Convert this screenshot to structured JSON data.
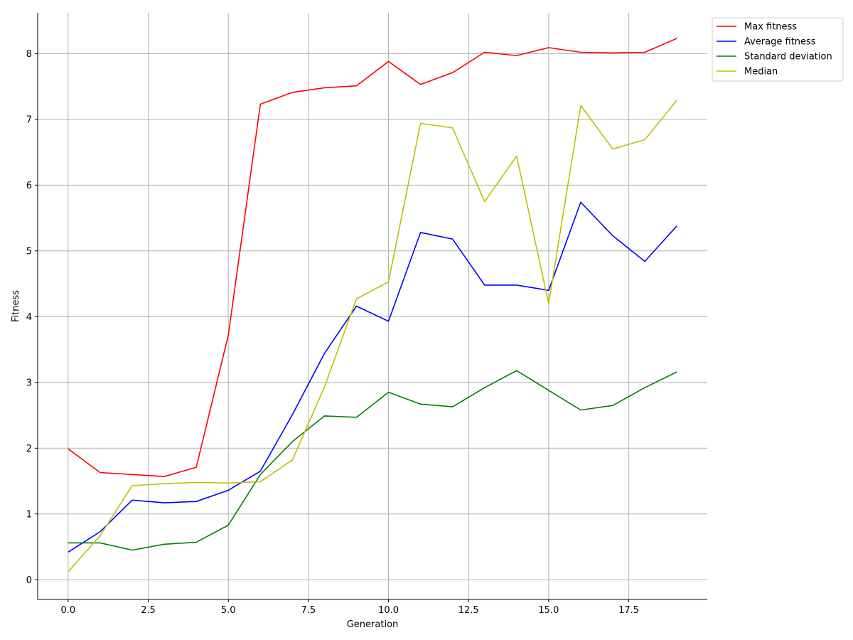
{
  "chart_data": {
    "type": "line",
    "xlabel": "Generation",
    "ylabel": "Fitness",
    "xlim": [
      -0.95,
      19.95
    ],
    "ylim": [
      -0.3,
      8.62
    ],
    "x_ticks": [
      0.0,
      2.5,
      5.0,
      7.5,
      10.0,
      12.5,
      15.0,
      17.5
    ],
    "x_tick_labels": [
      "0.0",
      "2.5",
      "5.0",
      "7.5",
      "10.0",
      "12.5",
      "15.0",
      "17.5"
    ],
    "y_ticks": [
      0,
      1,
      2,
      3,
      4,
      5,
      6,
      7,
      8
    ],
    "y_tick_labels": [
      "0",
      "1",
      "2",
      "3",
      "4",
      "5",
      "6",
      "7",
      "8"
    ],
    "grid": true,
    "legend_position": "outside-top-right",
    "x": [
      0,
      1,
      2,
      3,
      4,
      5,
      6,
      7,
      8,
      9,
      10,
      11,
      12,
      13,
      14,
      15,
      16,
      17,
      18,
      19
    ],
    "series": [
      {
        "name": "Max fitness",
        "color": "#ff0000",
        "values": [
          1.99,
          1.63,
          1.6,
          1.57,
          1.71,
          3.72,
          7.23,
          7.41,
          7.48,
          7.51,
          7.88,
          7.53,
          7.71,
          8.02,
          7.97,
          8.09,
          8.02,
          8.01,
          8.02,
          8.23
        ]
      },
      {
        "name": "Average fitness",
        "color": "#0000ff",
        "values": [
          0.42,
          0.73,
          1.21,
          1.17,
          1.19,
          1.36,
          1.65,
          2.51,
          3.44,
          4.16,
          3.93,
          5.28,
          5.18,
          4.48,
          4.48,
          4.4,
          5.74,
          5.23,
          4.84,
          5.38
        ]
      },
      {
        "name": "Standard deviation",
        "color": "#008000",
        "values": [
          0.56,
          0.56,
          0.45,
          0.54,
          0.57,
          0.83,
          1.6,
          2.1,
          2.49,
          2.47,
          2.85,
          2.67,
          2.63,
          2.92,
          3.18,
          2.88,
          2.58,
          2.65,
          2.92,
          3.16
        ]
      },
      {
        "name": "Median",
        "color": "#bfbf00",
        "values": [
          0.12,
          0.67,
          1.43,
          1.46,
          1.48,
          1.47,
          1.49,
          1.82,
          2.93,
          4.27,
          4.53,
          6.94,
          6.87,
          5.75,
          6.44,
          4.2,
          7.21,
          6.55,
          6.69,
          7.29
        ]
      }
    ]
  }
}
